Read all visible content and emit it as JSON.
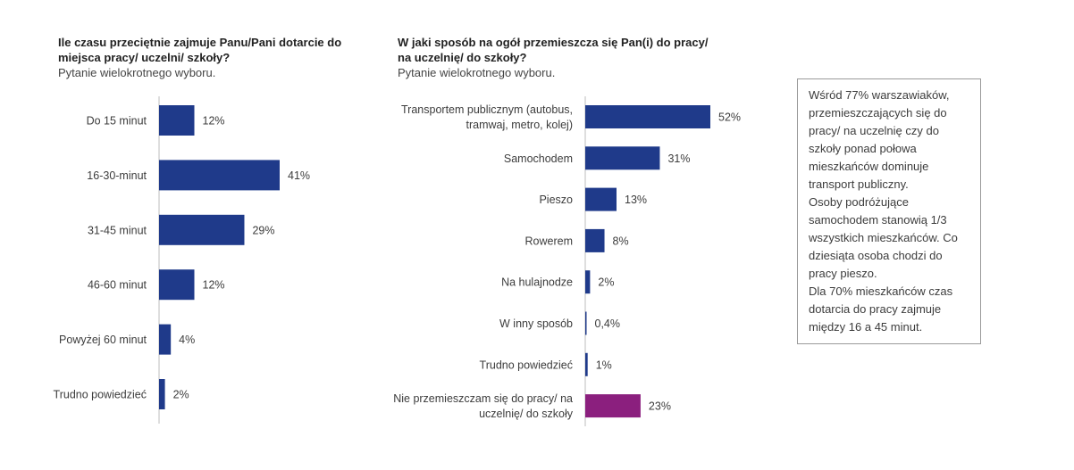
{
  "chart_data": [
    {
      "type": "bar",
      "orientation": "horizontal",
      "title": "Ile czasu przeciętnie zajmuje Panu/Pani dotarcie do miejsca pracy/ uczelni/ szkoły?",
      "subtitle": "Pytanie wielokrotnego wyboru.",
      "categories": [
        "Do 15 minut",
        "16-30-minut",
        "31-45 minut",
        "46-60 minut",
        "Powyżej 60 minut",
        "Trudno powiedzieć"
      ],
      "values": [
        12,
        41,
        29,
        12,
        4,
        2
      ],
      "value_labels": [
        "12%",
        "41%",
        "29%",
        "12%",
        "4%",
        "2%"
      ],
      "colors": [
        "#1f3a8a",
        "#1f3a8a",
        "#1f3a8a",
        "#1f3a8a",
        "#1f3a8a",
        "#1f3a8a"
      ],
      "xlim": [
        0,
        52
      ]
    },
    {
      "type": "bar",
      "orientation": "horizontal",
      "title": "W jaki sposób na ogół przemieszcza się Pan(i) do pracy/ na uczelnię/ do szkoły?",
      "subtitle": "Pytanie wielokrotnego wyboru.",
      "categories": [
        [
          "Transportem publicznym (autobus,",
          "tramwaj, metro, kolej)"
        ],
        [
          "Samochodem"
        ],
        [
          "Pieszo"
        ],
        [
          "Rowerem"
        ],
        [
          "Na hulajnodze"
        ],
        [
          "W inny sposób"
        ],
        [
          "Trudno powiedzieć"
        ],
        [
          "Nie przemieszczam się do pracy/ na",
          "uczelnię/ do szkoły"
        ]
      ],
      "values": [
        52,
        31,
        13,
        8,
        2,
        0.4,
        1,
        23
      ],
      "value_labels": [
        "52%",
        "31%",
        "13%",
        "8%",
        "2%",
        "0,4%",
        "1%",
        "23%"
      ],
      "colors": [
        "#1f3a8a",
        "#1f3a8a",
        "#1f3a8a",
        "#1f3a8a",
        "#1f3a8a",
        "#1f3a8a",
        "#1f3a8a",
        "#8b1f7e"
      ],
      "xlim": [
        0,
        52
      ]
    }
  ],
  "note": {
    "paragraphs": [
      "Wśród 77% warszawiaków, przemieszczających się do pracy/ na uczelnię czy do szkoły ponad połowa mieszkańców dominuje transport publiczny.",
      "Osoby podróżujące samochodem stanowią 1/3 wszystkich mieszkańców. Co dziesiąta osoba chodzi do pracy pieszo.",
      "Dla 70% mieszkańców czas dotarcia do pracy zajmuje między 16 a 45 minut."
    ]
  }
}
